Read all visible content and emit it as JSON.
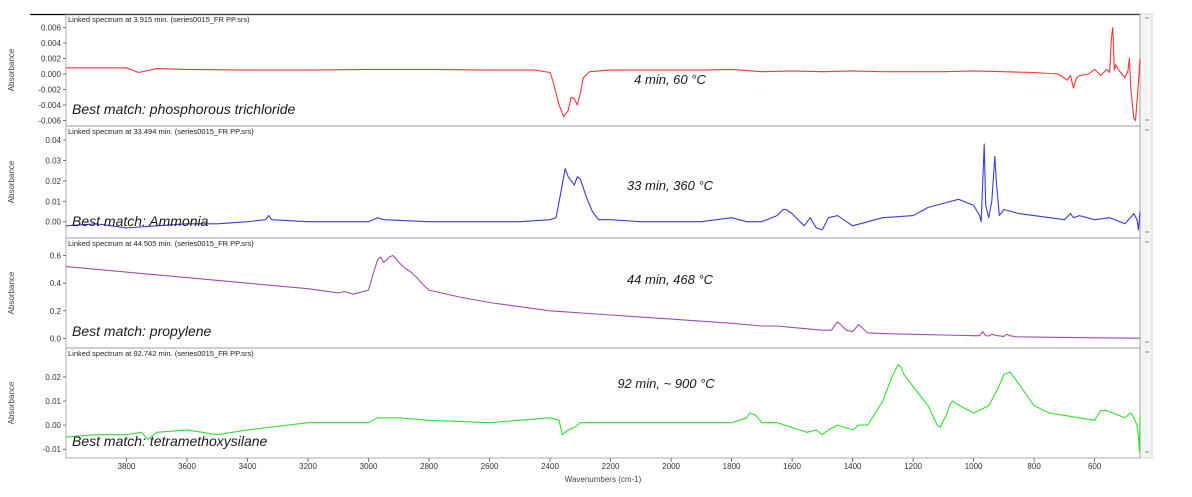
{
  "figure": {
    "xlabel": "Wavenumbers (cm-1)",
    "ylabel": "Absorbance",
    "x_ticks": [
      3800,
      3600,
      3400,
      3200,
      3000,
      2800,
      2600,
      2400,
      2200,
      2000,
      1800,
      1600,
      1400,
      1200,
      1000,
      800,
      600
    ],
    "xlim": [
      4000,
      450
    ]
  },
  "chart_data": [
    {
      "type": "line",
      "header": "Linked spectrum at 3.915 min. (series0015_FR PP.srs)",
      "best_match": "Best match: phosphorous trichloride",
      "condition": "4 min, 60 °C",
      "color": "#ff3333",
      "ylabel": "Absorbance",
      "ylim": [
        -0.0062,
        0.0062
      ],
      "y_ticks": [
        0.006,
        0.004,
        0.002,
        0.0,
        -0.002,
        -0.004,
        -0.006
      ],
      "y_tick_labels": [
        "0.006",
        "0.004",
        "0.002",
        "0.000",
        "-0.002",
        "-0.004",
        "-0.006"
      ],
      "x": [
        4000,
        3900,
        3800,
        3760,
        3700,
        3600,
        3400,
        3200,
        3000,
        2800,
        2600,
        2450,
        2400,
        2390,
        2370,
        2355,
        2340,
        2330,
        2320,
        2310,
        2300,
        2290,
        2270,
        2240,
        2200,
        2100,
        2000,
        1900,
        1800,
        1700,
        1600,
        1500,
        1400,
        1300,
        1200,
        1100,
        1000,
        900,
        800,
        720,
        690,
        680,
        670,
        660,
        650,
        620,
        600,
        580,
        560,
        550,
        545,
        540,
        535,
        530,
        520,
        500,
        490,
        485,
        480,
        475,
        470,
        465,
        460,
        455,
        450
      ],
      "y": [
        0.0008,
        0.0008,
        0.0008,
        0.0002,
        0.0007,
        0.0006,
        0.0005,
        0.0005,
        0.0006,
        0.0006,
        0.0005,
        0.0005,
        0.0002,
        -0.001,
        -0.004,
        -0.0055,
        -0.0047,
        -0.003,
        -0.0032,
        -0.004,
        -0.0025,
        -0.0005,
        0.0003,
        0.0004,
        0.0005,
        0.0005,
        0.0005,
        0.0005,
        0.0006,
        0.0003,
        0.0004,
        0.0003,
        0.0004,
        0.0003,
        0.0003,
        0.0003,
        0.0004,
        0.0003,
        0.0002,
        0.0,
        -0.0008,
        -0.0002,
        -0.0018,
        -0.0005,
        -0.0002,
        0.0,
        0.0006,
        -0.0002,
        0.0006,
        0.0002,
        0.0045,
        0.006,
        0.0005,
        0.0012,
        0.0005,
        -0.0005,
        0.0004,
        0.002,
        -0.002,
        -0.004,
        -0.0058,
        -0.006,
        -0.0035,
        -0.001,
        0.002
      ]
    },
    {
      "type": "line",
      "header": "Linked spectrum at 33.494 min. (series0015_FR PP.srs)",
      "best_match": "Best match: Ammonia",
      "condition": "33 min, 360 °C",
      "color": "#3b3bd8",
      "ylabel": "Absorbance",
      "ylim": [
        -0.006,
        0.041
      ],
      "y_ticks": [
        0.04,
        0.03,
        0.02,
        0.01,
        0.0
      ],
      "y_tick_labels": [
        "0.04",
        "0.03",
        "0.02",
        "0.01",
        "0.00"
      ],
      "x": [
        4000,
        3900,
        3800,
        3700,
        3600,
        3500,
        3400,
        3340,
        3330,
        3320,
        3200,
        3000,
        2970,
        2950,
        2800,
        2500,
        2400,
        2380,
        2360,
        2350,
        2340,
        2320,
        2310,
        2300,
        2280,
        2260,
        2240,
        2200,
        2100,
        2000,
        1900,
        1800,
        1750,
        1700,
        1650,
        1630,
        1620,
        1600,
        1580,
        1560,
        1540,
        1520,
        1500,
        1480,
        1450,
        1400,
        1300,
        1200,
        1150,
        1100,
        1050,
        1000,
        980,
        975,
        965,
        960,
        950,
        940,
        930,
        925,
        915,
        900,
        850,
        800,
        700,
        680,
        670,
        650,
        600,
        550,
        500,
        470,
        460,
        455,
        450
      ],
      "y": [
        -0.002,
        -0.001,
        -0.003,
        -0.002,
        -0.001,
        -0.001,
        0.0,
        0.001,
        0.003,
        0.001,
        0.0,
        0.0,
        0.002,
        0.001,
        0.0,
        0.0,
        0.001,
        0.002,
        0.018,
        0.026,
        0.022,
        0.018,
        0.022,
        0.021,
        0.012,
        0.005,
        0.001,
        0.001,
        0.0,
        0.0,
        0.0,
        0.002,
        0.0,
        0.0,
        0.003,
        0.006,
        0.006,
        0.004,
        0.001,
        -0.002,
        0.002,
        -0.003,
        -0.004,
        0.002,
        0.003,
        -0.002,
        0.002,
        0.003,
        0.007,
        0.009,
        0.011,
        0.008,
        0.003,
        0.0,
        0.038,
        0.008,
        0.002,
        0.01,
        0.032,
        0.02,
        0.003,
        0.006,
        0.004,
        0.003,
        0.001,
        0.004,
        0.002,
        0.003,
        0.001,
        0.002,
        -0.001,
        0.004,
        0.001,
        -0.004,
        0.005
      ]
    },
    {
      "type": "line",
      "header": "Linked spectrum at 44.505 min. (series0015_FR PP.srs)",
      "best_match": "Best match: propylene",
      "condition": "44 min, 468 °C",
      "color": "#9b4fb0",
      "ylabel": "Absorbance",
      "ylim": [
        -0.04,
        0.64
      ],
      "y_ticks": [
        0.6,
        0.4,
        0.2,
        0.0
      ],
      "y_tick_labels": [
        "0.6",
        "0.4",
        "0.2",
        "0.0"
      ],
      "x": [
        4000,
        3800,
        3600,
        3400,
        3200,
        3100,
        3080,
        3050,
        3000,
        2990,
        2970,
        2960,
        2950,
        2940,
        2930,
        2920,
        2910,
        2900,
        2880,
        2860,
        2840,
        2820,
        2800,
        2700,
        2600,
        2400,
        2200,
        2000,
        1800,
        1700,
        1650,
        1600,
        1500,
        1470,
        1450,
        1440,
        1420,
        1400,
        1380,
        1370,
        1350,
        1300,
        1200,
        1100,
        1000,
        980,
        970,
        960,
        950,
        940,
        920,
        900,
        890,
        880,
        860,
        800,
        700,
        600,
        500,
        450
      ],
      "y": [
        0.52,
        0.48,
        0.44,
        0.4,
        0.36,
        0.33,
        0.34,
        0.32,
        0.35,
        0.43,
        0.57,
        0.59,
        0.55,
        0.57,
        0.59,
        0.6,
        0.58,
        0.55,
        0.51,
        0.48,
        0.44,
        0.39,
        0.35,
        0.3,
        0.26,
        0.2,
        0.17,
        0.14,
        0.11,
        0.09,
        0.09,
        0.08,
        0.06,
        0.06,
        0.12,
        0.1,
        0.06,
        0.05,
        0.1,
        0.08,
        0.04,
        0.035,
        0.03,
        0.025,
        0.02,
        0.02,
        0.05,
        0.02,
        0.018,
        0.03,
        0.02,
        0.015,
        0.03,
        0.02,
        0.012,
        0.01,
        0.008,
        0.005,
        0.003,
        0.002
      ]
    },
    {
      "type": "line",
      "header": "Linked spectrum at 92.742 min. (series0015_FR PP.srs)",
      "best_match": "Best match: tetramethoxysilane",
      "condition": "92 min, ~ 900 °C",
      "color": "#33dd33",
      "ylabel": "Absorbance",
      "ylim": [
        -0.012,
        0.027
      ],
      "y_ticks": [
        0.02,
        0.01,
        0.0,
        -0.01
      ],
      "y_tick_labels": [
        "0.02",
        "0.01",
        "0.00",
        "-0.01"
      ],
      "x": [
        4000,
        3900,
        3800,
        3750,
        3730,
        3700,
        3600,
        3500,
        3400,
        3200,
        3000,
        2970,
        2950,
        2900,
        2800,
        2600,
        2400,
        2370,
        2360,
        2340,
        2320,
        2300,
        2200,
        2000,
        1800,
        1750,
        1740,
        1720,
        1700,
        1650,
        1600,
        1550,
        1520,
        1500,
        1480,
        1450,
        1400,
        1380,
        1350,
        1300,
        1270,
        1250,
        1240,
        1230,
        1200,
        1150,
        1120,
        1110,
        1100,
        1090,
        1080,
        1070,
        1060,
        1000,
        950,
        920,
        900,
        880,
        850,
        800,
        750,
        700,
        650,
        600,
        580,
        560,
        540,
        520,
        500,
        480,
        470,
        460,
        455,
        452,
        450
      ],
      "y": [
        -0.005,
        -0.004,
        -0.004,
        -0.003,
        -0.006,
        -0.003,
        -0.002,
        -0.004,
        -0.002,
        0.001,
        0.001,
        0.003,
        0.003,
        0.003,
        0.002,
        0.001,
        0.003,
        0.002,
        -0.004,
        -0.002,
        -0.001,
        0.001,
        0.001,
        0.001,
        0.001,
        0.003,
        0.005,
        0.004,
        0.001,
        0.001,
        -0.001,
        -0.003,
        -0.002,
        -0.004,
        -0.002,
        0.0,
        -0.002,
        0.0,
        0.0,
        0.01,
        0.02,
        0.025,
        0.024,
        0.021,
        0.016,
        0.008,
        0.0,
        -0.001,
        0.002,
        0.004,
        0.008,
        0.01,
        0.009,
        0.005,
        0.008,
        0.015,
        0.021,
        0.022,
        0.017,
        0.008,
        0.005,
        0.004,
        0.003,
        0.002,
        0.006,
        0.006,
        0.005,
        0.004,
        0.003,
        0.005,
        0.003,
        0.0,
        -0.005,
        -0.011,
        0.004
      ]
    }
  ]
}
